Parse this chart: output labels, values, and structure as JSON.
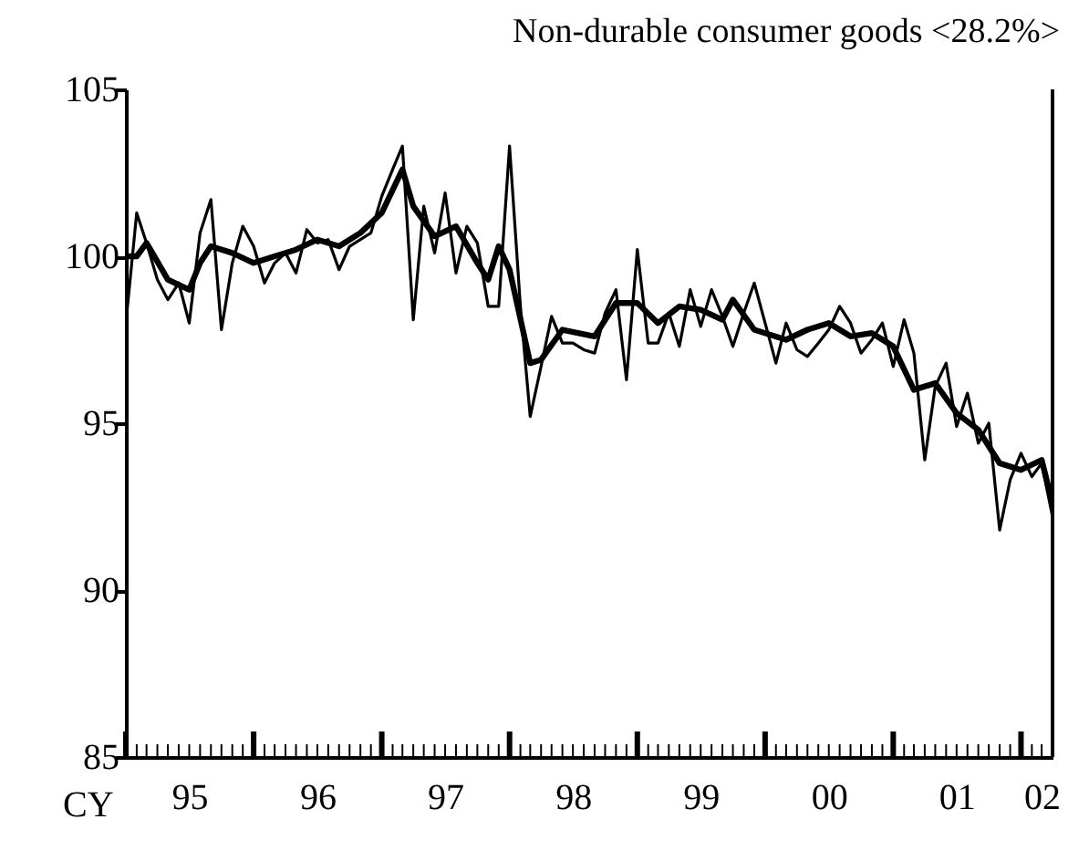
{
  "chart_data": {
    "type": "line",
    "title": "Non-durable consumer goods <28.2%>",
    "xlabel": "CY",
    "x": [
      "1995-01",
      "1995-02",
      "1995-03",
      "1995-04",
      "1995-05",
      "1995-06",
      "1995-07",
      "1995-08",
      "1995-09",
      "1995-10",
      "1995-11",
      "1995-12",
      "1996-01",
      "1996-02",
      "1996-03",
      "1996-04",
      "1996-05",
      "1996-06",
      "1996-07",
      "1996-08",
      "1996-09",
      "1996-10",
      "1996-11",
      "1996-12",
      "1997-01",
      "1997-02",
      "1997-03",
      "1997-04",
      "1997-05",
      "1997-06",
      "1997-07",
      "1997-08",
      "1997-09",
      "1997-10",
      "1997-11",
      "1997-12",
      "1998-01",
      "1998-02",
      "1998-03",
      "1998-04",
      "1998-05",
      "1998-06",
      "1998-07",
      "1998-08",
      "1998-09",
      "1998-10",
      "1998-11",
      "1998-12",
      "1999-01",
      "1999-02",
      "1999-03",
      "1999-04",
      "1999-05",
      "1999-06",
      "1999-07",
      "1999-08",
      "1999-09",
      "1999-10",
      "1999-11",
      "1999-12",
      "2000-01",
      "2000-02",
      "2000-03",
      "2000-04",
      "2000-05",
      "2000-06",
      "2000-07",
      "2000-08",
      "2000-09",
      "2000-10",
      "2000-11",
      "2000-12",
      "2001-01",
      "2001-02",
      "2001-03",
      "2001-04",
      "2001-05",
      "2001-06",
      "2001-07",
      "2001-08",
      "2001-09",
      "2001-10",
      "2001-11",
      "2001-12",
      "2002-01",
      "2002-02",
      "2002-03",
      "2002-04"
    ],
    "series": [
      {
        "color": "#000000",
        "values": [
          98.0,
          101.3,
          100.4,
          99.3,
          98.7,
          99.2,
          98.0,
          100.7,
          101.7,
          97.8,
          99.8,
          100.9,
          100.3,
          99.2,
          99.8,
          100.1,
          99.5,
          100.8,
          100.4,
          100.5,
          99.6,
          100.3,
          100.5,
          100.7,
          101.8,
          102.6,
          103.3,
          98.1,
          101.5,
          100.1,
          101.9,
          99.5,
          100.9,
          100.4,
          98.5,
          98.5,
          103.3,
          98.5,
          95.2,
          96.7,
          98.2,
          97.4,
          97.4,
          97.2,
          97.1,
          98.3,
          99.0,
          96.3,
          100.2,
          97.4,
          97.4,
          98.3,
          97.3,
          99.0,
          97.9,
          99.0,
          98.2,
          97.3,
          98.3,
          99.2,
          98.0,
          96.8,
          98.0,
          97.2,
          97.0,
          97.4,
          97.8,
          98.5,
          98.0,
          97.1,
          97.5,
          98.0,
          96.7,
          98.1,
          97.1,
          93.9,
          96.1,
          96.8,
          94.9,
          95.9,
          94.4,
          95.0,
          91.8,
          93.3,
          94.1,
          93.4,
          93.8,
          92.2
        ]
      },
      {
        "type": "line",
        "color": "#000000",
        "x": [
          "1995-01",
          "1995-02",
          "1995-03",
          "1995-05",
          "1995-07",
          "1995-08",
          "1995-09",
          "1995-11",
          "1996-01",
          "1996-03",
          "1996-05",
          "1996-07",
          "1996-09",
          "1996-11",
          "1997-01",
          "1997-03",
          "1997-04",
          "1997-06",
          "1997-08",
          "1997-10",
          "1997-11",
          "1997-12",
          "1998-01",
          "1998-03",
          "1998-04",
          "1998-06",
          "1998-09",
          "1998-11",
          "1999-01",
          "1999-03",
          "1999-05",
          "1999-07",
          "1999-09",
          "1999-10",
          "1999-12",
          "2000-03",
          "2000-05",
          "2000-07",
          "2000-09",
          "2000-11",
          "2001-01",
          "2001-03",
          "2001-05",
          "2001-07",
          "2001-09",
          "2001-11",
          "2002-01",
          "2002-03",
          "2002-04"
        ],
        "values": [
          100.0,
          100.0,
          100.4,
          99.3,
          99.0,
          99.8,
          100.3,
          100.1,
          99.8,
          100.0,
          100.2,
          100.5,
          100.3,
          100.7,
          101.3,
          102.6,
          101.5,
          100.6,
          100.9,
          99.8,
          99.3,
          100.3,
          99.6,
          96.8,
          96.9,
          97.8,
          97.6,
          98.6,
          98.6,
          98.0,
          98.5,
          98.4,
          98.1,
          98.7,
          97.8,
          97.5,
          97.8,
          98.0,
          97.6,
          97.7,
          97.3,
          96.0,
          96.2,
          95.3,
          94.8,
          93.8,
          93.6,
          93.9,
          92.6
        ]
      }
    ],
    "xlim": [
      "1995-01",
      "2002-04"
    ],
    "xticks": [
      {
        "value": "1995-01",
        "label": null
      },
      {
        "value": "1995-07",
        "label": "95"
      },
      {
        "value": "1996-01",
        "label": null
      },
      {
        "value": "1996-07",
        "label": "96"
      },
      {
        "value": "1997-01",
        "label": null
      },
      {
        "value": "1997-07",
        "label": "97"
      },
      {
        "value": "1998-01",
        "label": null
      },
      {
        "value": "1998-07",
        "label": "98"
      },
      {
        "value": "1999-01",
        "label": null
      },
      {
        "value": "1999-07",
        "label": "99"
      },
      {
        "value": "2000-01",
        "label": null
      },
      {
        "value": "2000-07",
        "label": "00"
      },
      {
        "value": "2001-01",
        "label": null
      },
      {
        "value": "2001-07",
        "label": "01"
      },
      {
        "value": "2002-01",
        "label": null
      },
      {
        "value": "2002-03",
        "label": "02"
      }
    ],
    "ylim": [
      85,
      105
    ],
    "yticks": [
      85,
      90,
      95,
      100,
      105
    ],
    "grid": false,
    "marker": "none",
    "line_style": "solid"
  }
}
